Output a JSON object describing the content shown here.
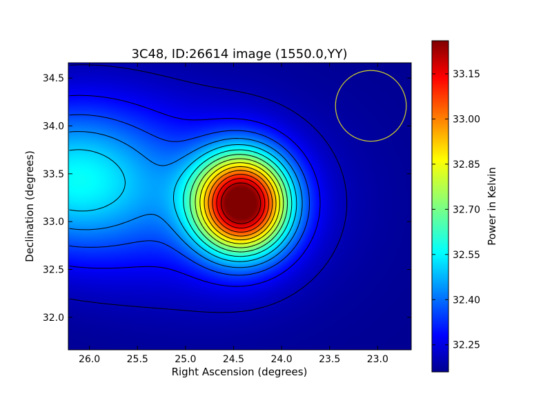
{
  "chart_data": {
    "type": "heatmap",
    "title": "3C48, ID:26614 image (1550.0,YY)",
    "xlabel": "Right Ascension (degrees)",
    "ylabel": "Declination (degrees)",
    "x_axis_inverted": true,
    "xlim": [
      26.22,
      22.65
    ],
    "ylim": [
      31.66,
      34.66
    ],
    "x_ticks": [
      "26.0",
      "25.5",
      "25.0",
      "24.5",
      "24.0",
      "23.5",
      "23.0"
    ],
    "x_tick_values": [
      26.0,
      25.5,
      25.0,
      24.5,
      24.0,
      23.5,
      23.0
    ],
    "y_ticks": [
      "32.0",
      "32.5",
      "33.0",
      "33.5",
      "34.0",
      "34.5"
    ],
    "y_tick_values": [
      32.0,
      32.5,
      33.0,
      33.5,
      34.0,
      34.5
    ],
    "colormap": "jet",
    "colorbar": {
      "label": "Power in Kelvin",
      "range": [
        32.16,
        33.26
      ],
      "ticks": [
        "32.25",
        "32.40",
        "32.55",
        "32.70",
        "32.85",
        "33.00",
        "33.15"
      ],
      "tick_values": [
        32.25,
        32.4,
        32.55,
        32.7,
        32.85,
        33.0,
        33.15
      ]
    },
    "peak": {
      "ra": 24.41,
      "dec": 33.19,
      "value": 33.24
    },
    "secondary_lobe": {
      "ra": 26.2,
      "dec": 33.45,
      "value": 32.54
    },
    "contours": "on",
    "grid": "off",
    "beam_circle": {
      "ra": 23.07,
      "dec": 34.21,
      "radius_deg": 0.37,
      "color": "#d6d62a"
    }
  }
}
